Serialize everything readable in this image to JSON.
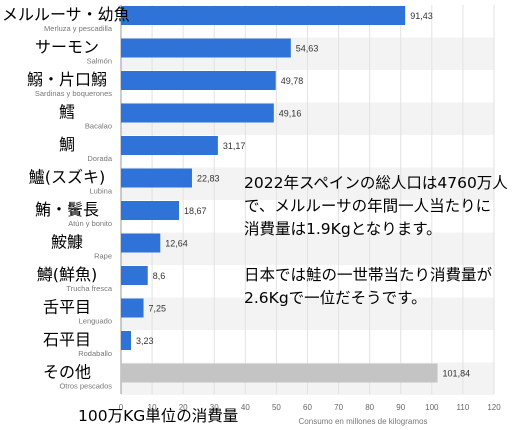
{
  "chart_data": {
    "type": "bar",
    "orientation": "horizontal",
    "categories": [
      {
        "jp": "メルルーサ・幼魚",
        "es": "Merluza y pescadilla"
      },
      {
        "jp": "サーモン",
        "es": "Salmón"
      },
      {
        "jp": "鰯・片口鰯",
        "es": "Sardinas y boquerones"
      },
      {
        "jp": "鱈",
        "es": "Bacalao"
      },
      {
        "jp": "鯛",
        "es": "Dorada"
      },
      {
        "jp": "鱸(スズキ)",
        "es": "Lubina"
      },
      {
        "jp": "鮪・鬢長",
        "es": "Atún y bonito"
      },
      {
        "jp": "鮟鱇",
        "es": "Rape"
      },
      {
        "jp": "鱒(鮮魚)",
        "es": "Trucha fresca"
      },
      {
        "jp": "舌平目",
        "es": "Lenguado"
      },
      {
        "jp": "石平目",
        "es": "Rodaballo"
      },
      {
        "jp": "その他",
        "es": "Otros pescados"
      }
    ],
    "values": [
      91.43,
      54.63,
      49.78,
      49.16,
      31.17,
      22.83,
      18.67,
      12.64,
      8.6,
      7.25,
      3.23,
      101.84
    ],
    "value_labels": [
      "91,43",
      "54,63",
      "49,78",
      "49,16",
      "31,17",
      "22,83",
      "18,67",
      "12,64",
      "8,6",
      "7,25",
      "3,23",
      "101,84"
    ],
    "xlim": [
      0,
      120
    ],
    "xticks": [
      "0",
      "10",
      "20",
      "30",
      "40",
      "50",
      "60",
      "70",
      "80",
      "90",
      "100",
      "110",
      "120"
    ],
    "xlabel": "Consumo en millones de kilogramos",
    "colors": {
      "bar": "#2f72d8",
      "other_bar": "#c4c4c4",
      "stripe": "#f3f3f3",
      "grid": "#e2e2e2"
    },
    "grid": true
  },
  "annotation": {
    "line1": "2022年スペインの総人口は4760万人",
    "line2": "で、メルルーサの年間一人当たりに",
    "line3": "消費量は1.9Kgとなります。",
    "line4": "日本では鮭の一世帯当たり消費量が",
    "line5": "2.6Kgで一位だそうです。"
  },
  "unit_caption": "100万KG単位の消費量"
}
